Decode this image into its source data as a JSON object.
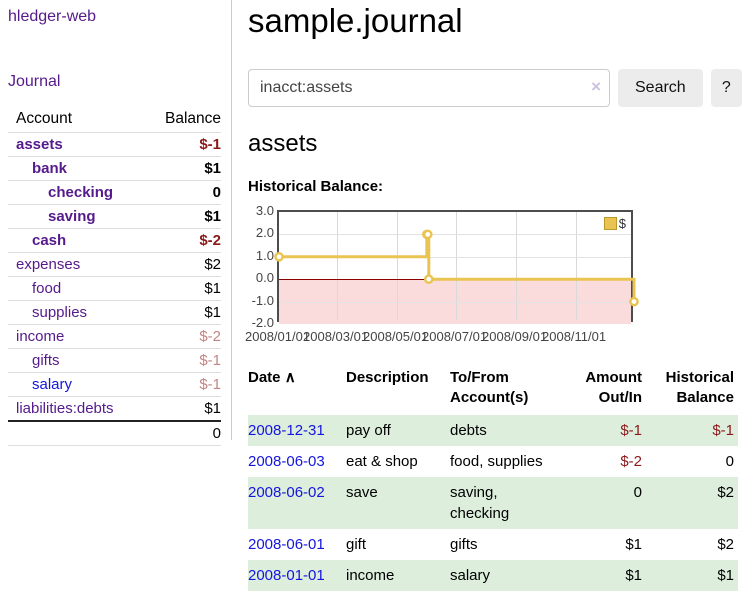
{
  "brand": "hledger-web",
  "nav": {
    "journal": "Journal"
  },
  "sidebar": {
    "col_account": "Account",
    "col_balance": "Balance",
    "rows": [
      {
        "account": "assets",
        "balance": "$-1"
      },
      {
        "account": "bank",
        "balance": "$1"
      },
      {
        "account": "checking",
        "balance": "0"
      },
      {
        "account": "saving",
        "balance": "$1"
      },
      {
        "account": "cash",
        "balance": "$-2"
      },
      {
        "account": "expenses",
        "balance": "$2"
      },
      {
        "account": "food",
        "balance": "$1"
      },
      {
        "account": "supplies",
        "balance": "$1"
      },
      {
        "account": "income",
        "balance": "$-2"
      },
      {
        "account": "gifts",
        "balance": "$-1"
      },
      {
        "account": "salary",
        "balance": "$-1"
      },
      {
        "account": "liabilities:debts",
        "balance": "$1"
      }
    ],
    "total": "0"
  },
  "header": {
    "title": "sample.journal"
  },
  "search": {
    "value": "inacct:assets",
    "clear": "×",
    "submit": "Search",
    "help": "?"
  },
  "account": {
    "title": "assets",
    "section_label": "Historical Balance:"
  },
  "chart_data": {
    "type": "line",
    "step": true,
    "title": "Historical Balance",
    "legend": "$",
    "legend_position": "top-right",
    "series": [
      {
        "name": "$",
        "color": "#e9c452",
        "points": [
          [
            "2008-01-01",
            1
          ],
          [
            "2008-06-01",
            2
          ],
          [
            "2008-06-02",
            2
          ],
          [
            "2008-06-03",
            0
          ],
          [
            "2008-12-31",
            -1
          ]
        ]
      }
    ],
    "ylim": [
      -2,
      3
    ],
    "y_ticks": [
      "3.0",
      "2.0",
      "1.0",
      "0.0",
      "-1.0",
      "-2.0"
    ],
    "x_ticks": [
      "2008/01/01",
      "2008/03/01",
      "2008/05/01",
      "2008/07/01",
      "2008/09/01",
      "2008/11/01"
    ],
    "grid": true,
    "negative_region_color": "#fadcdc",
    "zero_line_color": "#8b0000"
  },
  "register": {
    "col_date": "Date",
    "sort_indicator": "∧",
    "col_description": "Description",
    "col_accounts": "To/From Account(s)",
    "col_amount": "Amount Out/In",
    "col_balance": "Historical Balance",
    "rows": [
      {
        "date": "2008-12-31",
        "description": "pay off",
        "accounts": "debts",
        "amount": "$-1",
        "balance": "$-1"
      },
      {
        "date": "2008-06-03",
        "description": "eat & shop",
        "accounts": "food, supplies",
        "amount": "$-2",
        "balance": "0"
      },
      {
        "date": "2008-06-02",
        "description": "save",
        "accounts": "saving, checking",
        "amount": "0",
        "balance": "$2"
      },
      {
        "date": "2008-06-01",
        "description": "gift",
        "accounts": "gifts",
        "amount": "$1",
        "balance": "$2"
      },
      {
        "date": "2008-01-01",
        "description": "income",
        "accounts": "salary",
        "amount": "$1",
        "balance": "$1"
      }
    ]
  }
}
